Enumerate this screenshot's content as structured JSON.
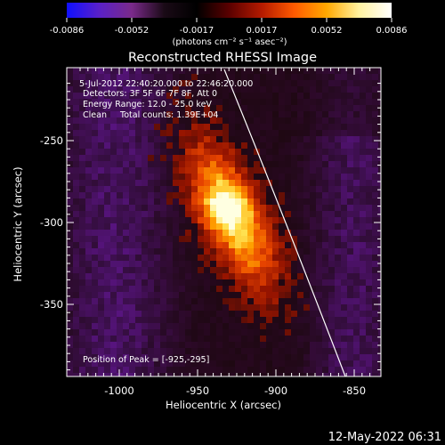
{
  "colorbar": {
    "ticks": [
      "-0.0086",
      "-0.0052",
      "-0.0017",
      "0.0017",
      "0.0052",
      "0.0086"
    ],
    "unit_label": "(photons cm⁻² s⁻¹ asec⁻²)",
    "stops": [
      "#1010ff",
      "#5a20c8",
      "#7a2a8a",
      "#1a0a16",
      "#000000",
      "#5a0000",
      "#b41a00",
      "#ff5a00",
      "#ffa800",
      "#fff2a0",
      "#ffffff"
    ]
  },
  "title": "Reconstructed RHESSI Image",
  "info": {
    "time_range": "5-Jul-2012 22:40:20.000 to 22:46:20.000",
    "detectors": "Detectors: 3F 5F 6F 7F 8F, Att 0",
    "energy_range": "Energy Range: 12.0 - 25.0 keV",
    "clean_counts": "Clean     Total counts: 1.39E+04",
    "peak": "Position of Peak = [-925,-295]"
  },
  "axes": {
    "xlabel": "Heliocentric X (arcsec)",
    "ylabel": "Heliocentric Y (arcsec)",
    "x_ticks": [
      "-1000",
      "-950",
      "-900",
      "-850"
    ],
    "y_ticks": [
      "-250",
      "-300",
      "-350"
    ]
  },
  "timestamp": "12-May-2022 06:31"
}
